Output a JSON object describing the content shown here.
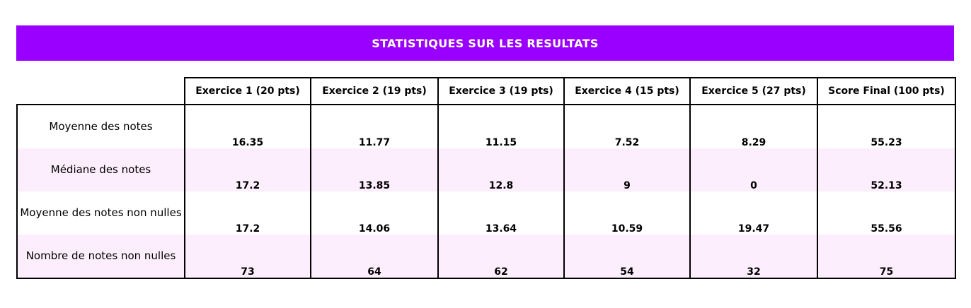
{
  "banner": {
    "title": "STATISTIQUES SUR LES RESULTATS"
  },
  "table": {
    "columns": [
      "Exercice 1 (20 pts)",
      "Exercice 2 (19 pts)",
      "Exercice 3 (19 pts)",
      "Exercice 4 (15 pts)",
      "Exercice 5 (27 pts)",
      "Score Final (100 pts)"
    ],
    "rows": [
      {
        "label": "Moyenne des notes",
        "values": [
          "16.35",
          "11.77",
          "11.15",
          "7.52",
          "8.29",
          "55.23"
        ]
      },
      {
        "label": "Médiane des notes",
        "values": [
          "17.2",
          "13.85",
          "12.8",
          "9",
          "0",
          "52.13"
        ]
      },
      {
        "label": "Moyenne des notes non nulles",
        "values": [
          "17.2",
          "14.06",
          "13.64",
          "10.59",
          "19.47",
          "55.56"
        ]
      },
      {
        "label": "Nombre de notes non nulles",
        "values": [
          "73",
          "64",
          "62",
          "54",
          "32",
          "75"
        ]
      }
    ]
  },
  "colors": {
    "banner": "#9900ff",
    "alt_row": "#fdeefd"
  }
}
